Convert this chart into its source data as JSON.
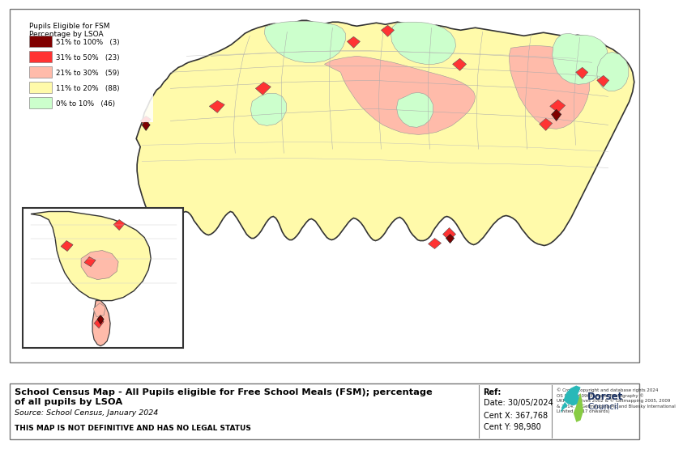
{
  "title": "School Census Map - All Pupils eligible for Free School Meals (FSM); percentage\nof all pupils by LSOA",
  "source": "Source: School Census, January 2024",
  "legal": "THIS MAP IS NOT DEFINITIVE AND HAS NO LEGAL STATUS",
  "ref_label": "Ref:",
  "date_label": "Date: 30/05/2024",
  "centx_label": "Cent X: 367,768",
  "centy_label": "Cent Y: 98,980",
  "copyright_text": "© Crown copyright and database rights 2024\nOS 0100060963. Aerial Photography ©\nUKPerspectives 2002 & © Getmapping 2005, 2009\n& 2014. © Getmapping Plc and Bluesky International\nLimited (2017 onwards)",
  "legend_title": "Pupils Eligible for FSM\nPercentage by LSOA",
  "legend_items": [
    {
      "label": "51% to 100%",
      "count": "(3)",
      "color": "#800000"
    },
    {
      "label": "31% to 50%",
      "count": "(23)",
      "color": "#FF3333"
    },
    {
      "label": "21% to 30%",
      "count": "(59)",
      "color": "#FFBBAA"
    },
    {
      "label": "11% to 20%",
      "count": "(88)",
      "color": "#FFFAAA"
    },
    {
      "label": "0% to 10%",
      "count": "(46)",
      "color": "#CCFFCC"
    }
  ],
  "map_bg": "#FFFAAA",
  "outer_bg": "#FFFFFF",
  "footer_bg": "#FFFFFF"
}
